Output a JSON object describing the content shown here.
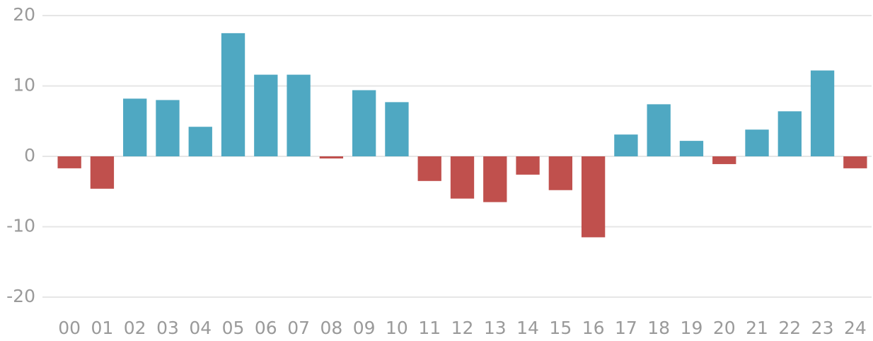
{
  "chart_data": {
    "type": "bar",
    "categories": [
      "00",
      "01",
      "02",
      "03",
      "04",
      "05",
      "06",
      "07",
      "08",
      "09",
      "10",
      "11",
      "12",
      "13",
      "14",
      "15",
      "16",
      "17",
      "18",
      "19",
      "20",
      "21",
      "22",
      "23",
      "24"
    ],
    "values": [
      -1.7,
      -4.6,
      8.2,
      8.0,
      4.2,
      17.5,
      11.6,
      11.6,
      -0.3,
      9.4,
      7.7,
      -3.5,
      -6.0,
      -6.5,
      -2.6,
      -4.8,
      -11.5,
      3.1,
      7.4,
      2.2,
      -1.1,
      3.8,
      6.4,
      12.2,
      -1.7
    ],
    "positive_color": "#4fa8c2",
    "negative_color": "#c0504d",
    "ylim": [
      -20,
      20
    ],
    "yticks": [
      -20,
      -10,
      0,
      10,
      20
    ],
    "grid": true
  }
}
